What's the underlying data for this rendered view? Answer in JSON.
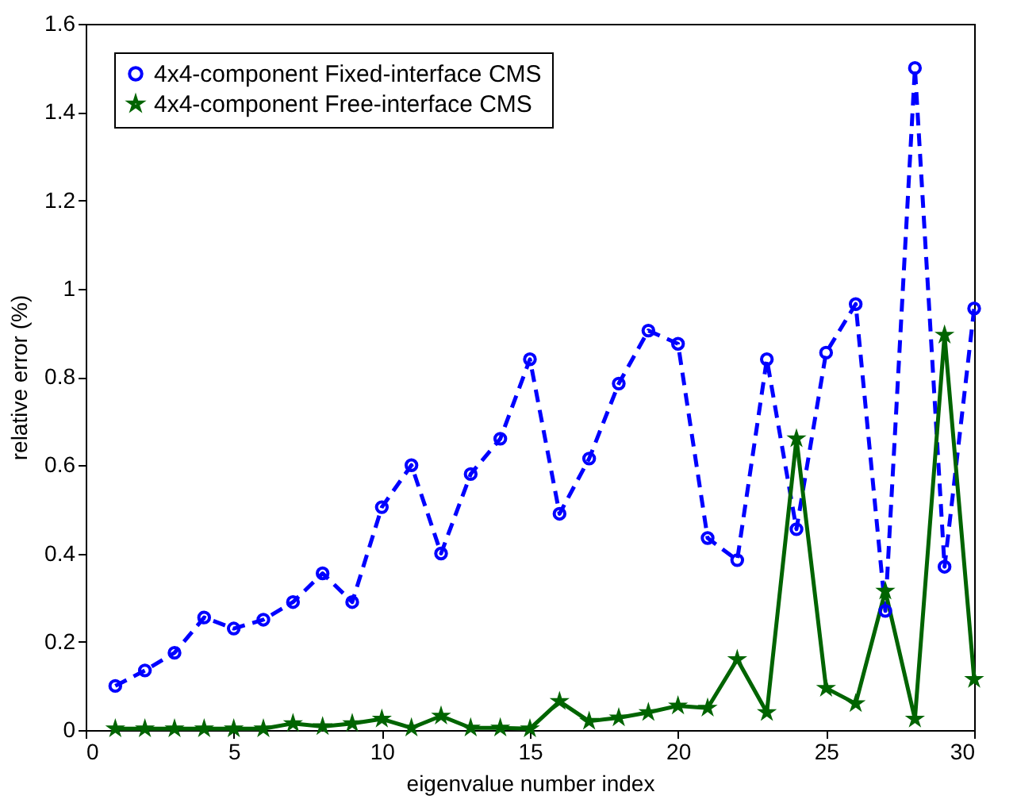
{
  "chart_data": {
    "type": "line",
    "xlabel": "eigenvalue number index",
    "ylabel": "relative error (%)",
    "x": [
      1,
      2,
      3,
      4,
      5,
      6,
      7,
      8,
      9,
      10,
      11,
      12,
      13,
      14,
      15,
      16,
      17,
      18,
      19,
      20,
      21,
      22,
      23,
      24,
      25,
      26,
      27,
      28,
      29,
      30
    ],
    "xlim": [
      0,
      30
    ],
    "xticks": [
      0,
      5,
      10,
      15,
      20,
      25,
      30
    ],
    "ylim": [
      0,
      1.6
    ],
    "yticks": [
      {
        "value": 0,
        "label": "0"
      },
      0.2,
      0.4,
      0.6,
      0.8,
      {
        "value": 1,
        "label": "1"
      },
      1.2,
      1.4,
      1.6
    ],
    "legend": "top left",
    "grid": false,
    "series": [
      {
        "name": "4x4-component Fixed-interface CMS",
        "color": "#0000ff",
        "marker": "circle",
        "line_style": "dashed",
        "values": [
          0.1,
          0.135,
          0.175,
          0.255,
          0.23,
          0.25,
          0.29,
          0.355,
          0.29,
          0.505,
          0.6,
          0.4,
          0.58,
          0.66,
          0.84,
          0.49,
          0.615,
          0.785,
          0.905,
          0.875,
          0.435,
          0.385,
          0.84,
          0.455,
          0.855,
          0.965,
          0.27,
          1.5,
          0.37,
          0.955
        ]
      },
      {
        "name": "4x4-component Free-interface CMS",
        "color": "#006400",
        "marker": "star",
        "line_style": "solid",
        "values": [
          0.003,
          0.003,
          0.003,
          0.003,
          0.003,
          0.003,
          0.015,
          0.008,
          0.015,
          0.025,
          0.005,
          0.032,
          0.005,
          0.005,
          0.003,
          0.065,
          0.02,
          0.028,
          0.04,
          0.055,
          0.05,
          0.16,
          0.04,
          0.66,
          0.095,
          0.06,
          0.315,
          0.025,
          0.895,
          0.115
        ]
      }
    ]
  }
}
